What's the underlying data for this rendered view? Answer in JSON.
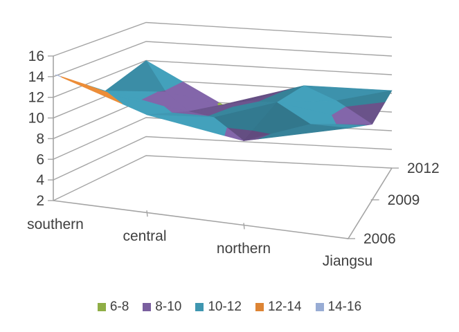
{
  "chart_data": {
    "type": "surface",
    "title": "",
    "categories": [
      "southern",
      "central",
      "northern",
      "Jiangsu"
    ],
    "series": [
      {
        "name": "2006",
        "values": [
          14.2,
          11.2,
          9.7,
          11.8
        ]
      },
      {
        "name": "2009",
        "values": [
          10.6,
          9.2,
          10.8,
          9.4
        ]
      },
      {
        "name": "2012",
        "values": [
          12.0,
          7.8,
          10.3,
          10.3
        ]
      }
    ],
    "value_axis": {
      "min": 2,
      "max": 16,
      "step": 2,
      "tick_labels": [
        "2",
        "4",
        "6",
        "8",
        "10",
        "12",
        "14",
        "16"
      ]
    },
    "category_axis_labels": [
      "southern",
      "central",
      "northern",
      "Jiangsu"
    ],
    "series_axis_labels": [
      "2006",
      "2009",
      "2012"
    ],
    "bands": [
      {
        "label": "6-8",
        "min": 6,
        "max": 8,
        "color": "#8FAE46"
      },
      {
        "label": "8-10",
        "min": 8,
        "max": 10,
        "color": "#7A5F9F"
      },
      {
        "label": "10-12",
        "min": 10,
        "max": 12,
        "color": "#3F96B0"
      },
      {
        "label": "12-14",
        "min": 12,
        "max": 14,
        "color": "#DD8434"
      },
      {
        "label": "14-16",
        "min": 14,
        "max": 16,
        "color": "#98ACD4"
      }
    ],
    "legend_position": "bottom",
    "grid": true,
    "background": "#FFFFFF",
    "text_color": "#3F3F3F",
    "gridline_color": "#A4A4A4"
  }
}
